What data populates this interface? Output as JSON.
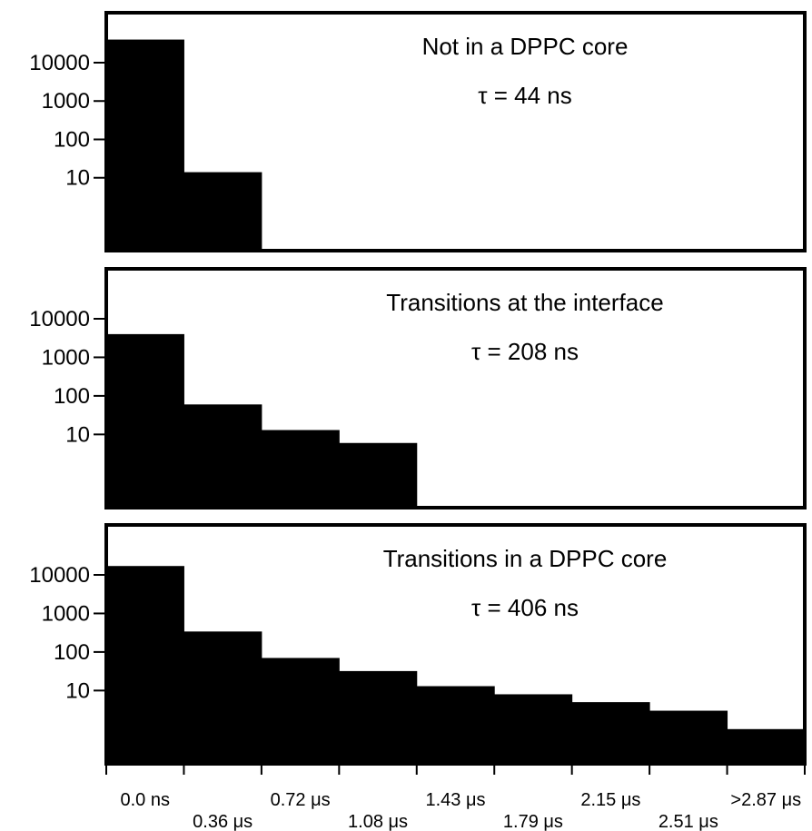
{
  "chart_data": [
    {
      "type": "bar",
      "title": "Not in a DPPC core",
      "annotation": "τ = 44 ns",
      "y_scale": "log",
      "ylim": [
        1,
        100000
      ],
      "yticks": [
        10,
        100,
        1000,
        10000
      ],
      "ytick_labels": [
        "10",
        "100",
        "1000",
        "10000"
      ],
      "values": [
        40000,
        14,
        0,
        0,
        0,
        0,
        0,
        0,
        0
      ]
    },
    {
      "type": "bar",
      "title": "Transitions at the interface",
      "annotation": "τ = 208 ns",
      "y_scale": "log",
      "ylim": [
        1,
        100000
      ],
      "yticks": [
        10,
        100,
        1000,
        10000
      ],
      "ytick_labels": [
        "10",
        "100",
        "1000",
        "10000"
      ],
      "values": [
        4000,
        60,
        13,
        6,
        0,
        0,
        0,
        0,
        0
      ]
    },
    {
      "type": "bar",
      "title": "Transitions in a DPPC core",
      "annotation": "τ = 406 ns",
      "y_scale": "log",
      "ylim": [
        1,
        100000
      ],
      "yticks": [
        10,
        100,
        1000,
        10000
      ],
      "ytick_labels": [
        "10",
        "100",
        "1000",
        "10000"
      ],
      "values": [
        17000,
        340,
        70,
        32,
        13,
        8,
        5,
        3,
        1
      ]
    }
  ],
  "x_axis": {
    "tick_labels": [
      "0.0 ns",
      "0.36 μs",
      "0.72 μs",
      "1.08 μs",
      "1.43 μs",
      "1.79 μs",
      "2.15 μs",
      "2.51 μs",
      ">2.87 μs"
    ]
  }
}
